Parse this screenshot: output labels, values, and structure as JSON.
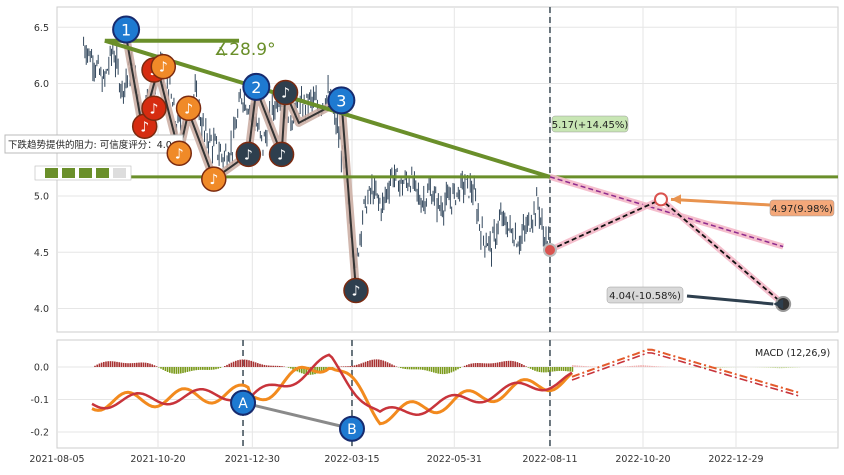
{
  "chart_data": [
    {
      "type": "line",
      "panel": "price",
      "ylim": [
        3.8,
        6.65
      ],
      "yticks": [
        4.0,
        4.5,
        5.0,
        5.5,
        6.0,
        6.5
      ],
      "ytick_labels": [
        "4.0",
        "4.5",
        "5.0",
        "5.5",
        "6.0",
        "6.5"
      ],
      "xticks": [
        "2021-08-05",
        "2021-10-20",
        "2021-12-30",
        "2022-03-15",
        "2022-05-31",
        "2022-08-11",
        "2022-10-20",
        "2022-12-29"
      ],
      "price_series": [
        [
          "2021-08-25",
          6.35
        ],
        [
          "2021-09-02",
          6.2
        ],
        [
          "2021-09-09",
          6.0
        ],
        [
          "2021-09-16",
          6.3
        ],
        [
          "2021-09-23",
          5.95
        ],
        [
          "2021-09-30",
          6.15
        ],
        [
          "2021-10-08",
          5.75
        ],
        [
          "2021-10-15",
          5.9
        ],
        [
          "2021-10-20",
          6.15
        ],
        [
          "2021-10-27",
          6.05
        ],
        [
          "2021-11-03",
          5.6
        ],
        [
          "2021-11-10",
          5.75
        ],
        [
          "2021-11-17",
          5.9
        ],
        [
          "2021-11-24",
          5.55
        ],
        [
          "2021-12-01",
          5.45
        ],
        [
          "2021-12-08",
          5.35
        ],
        [
          "2021-12-15",
          5.45
        ],
        [
          "2021-12-22",
          5.9
        ],
        [
          "2021-12-30",
          5.75
        ],
        [
          "2022-01-07",
          5.45
        ],
        [
          "2022-01-14",
          5.75
        ],
        [
          "2022-01-21",
          5.95
        ],
        [
          "2022-01-28",
          5.7
        ],
        [
          "2022-02-11",
          5.85
        ],
        [
          "2022-02-18",
          5.8
        ],
        [
          "2022-02-25",
          5.9
        ],
        [
          "2022-03-04",
          5.6
        ],
        [
          "2022-03-10",
          5.2
        ],
        [
          "2022-03-15",
          4.6
        ],
        [
          "2022-03-18",
          4.35
        ],
        [
          "2022-03-23",
          4.85
        ],
        [
          "2022-03-30",
          5.05
        ],
        [
          "2022-04-07",
          4.9
        ],
        [
          "2022-04-14",
          5.2
        ],
        [
          "2022-04-21",
          5.1
        ],
        [
          "2022-04-28",
          5.15
        ],
        [
          "2022-05-06",
          4.95
        ],
        [
          "2022-05-13",
          5.05
        ],
        [
          "2022-05-20",
          4.9
        ],
        [
          "2022-05-31",
          5.0
        ],
        [
          "2022-06-07",
          5.1
        ],
        [
          "2022-06-14",
          5.05
        ],
        [
          "2022-06-21",
          4.65
        ],
        [
          "2022-06-28",
          4.55
        ],
        [
          "2022-07-05",
          4.8
        ],
        [
          "2022-07-12",
          4.7
        ],
        [
          "2022-07-19",
          4.6
        ],
        [
          "2022-07-26",
          4.75
        ],
        [
          "2022-08-02",
          4.95
        ],
        [
          "2022-08-06",
          4.65
        ],
        [
          "2022-08-11",
          4.55
        ]
      ],
      "resistance_label": "下跌趋势提供的阻力: 可信度评分：4.0",
      "angle_label": "∡28.9°",
      "horizontal_level": 5.17,
      "wave_markers": [
        {
          "label": "1",
          "date": "2021-09-26",
          "value": 6.48
        },
        {
          "label": "2",
          "date": "2022-01-02",
          "value": 5.97
        },
        {
          "label": "3",
          "date": "2022-03-07",
          "value": 5.85
        }
      ],
      "note_markers": [
        {
          "date": "2021-10-10",
          "value": 5.62,
          "color": "#d62c10"
        },
        {
          "date": "2021-10-17",
          "value": 5.78,
          "color": "#d62c10"
        },
        {
          "date": "2021-10-17",
          "value": 6.12,
          "color": "#d62c10"
        },
        {
          "date": "2021-10-24",
          "value": 6.15,
          "color": "#f08a28"
        },
        {
          "date": "2021-11-05",
          "value": 5.38,
          "color": "#f08a28"
        },
        {
          "date": "2021-11-12",
          "value": 5.78,
          "color": "#f08a28"
        },
        {
          "date": "2021-12-01",
          "value": 5.15,
          "color": "#f08a28"
        },
        {
          "date": "2021-12-27",
          "value": 5.37,
          "color": "#2e3f4e"
        },
        {
          "date": "2022-01-21",
          "value": 5.37,
          "color": "#2e3f4e"
        },
        {
          "date": "2022-01-24",
          "value": 5.92,
          "color": "#2e3f4e"
        },
        {
          "date": "2022-03-18",
          "value": 4.16,
          "color": "#2e3f4e"
        }
      ],
      "forecasts": [
        {
          "label": "5.17(+14.45%)",
          "value": 5.17,
          "color": "#c8e6b4"
        },
        {
          "label": "4.97(9.98%)",
          "value": 4.97,
          "color": "#f4a87a"
        },
        {
          "label": "4.04(-10.58%)",
          "value": 4.04,
          "color": "#d9d9d9"
        }
      ],
      "vlines": [
        "2022-08-11"
      ]
    },
    {
      "type": "bar",
      "panel": "macd",
      "title": "MACD (12,26,9)",
      "ylim": [
        -0.24,
        0.09
      ],
      "yticks": [
        0.0,
        -0.1,
        -0.2
      ],
      "ytick_labels": [
        "0.0",
        "-0.1",
        "-0.2"
      ],
      "markers": [
        {
          "label": "A",
          "date": "2021-12-23",
          "value": -0.11
        },
        {
          "label": "B",
          "date": "2022-03-15",
          "value": -0.19
        }
      ],
      "vlines": [
        "2021-12-23",
        "2022-03-15",
        "2022-08-11"
      ]
    }
  ]
}
